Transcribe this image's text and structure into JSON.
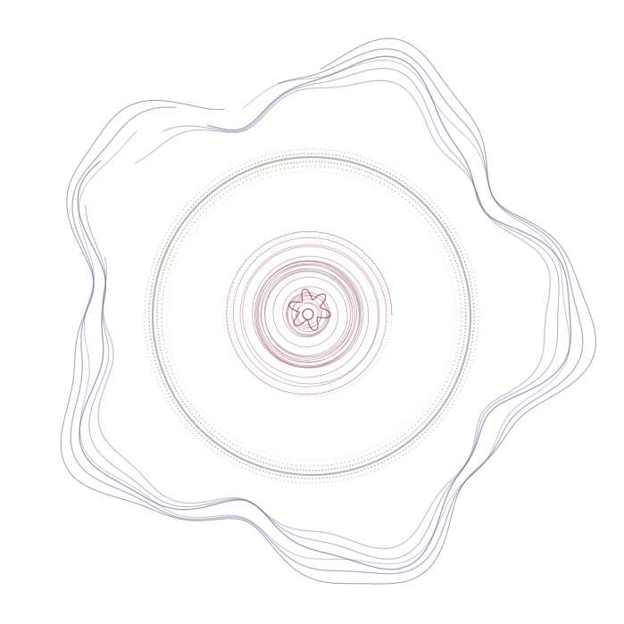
{
  "artwork": {
    "background": "#ffffff",
    "outer_wave_color": "#5a5a85",
    "middle_ring_color": "#7a8470",
    "inner_spiral_color": "#8a3a5a",
    "outer_wave_strands": 6,
    "outer_wave_lobes": 5
  }
}
